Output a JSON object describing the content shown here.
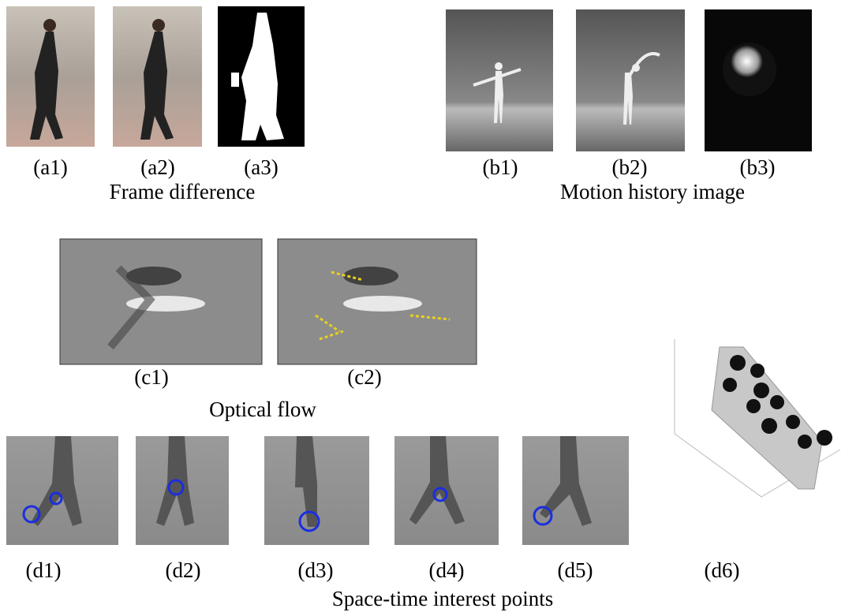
{
  "groups": [
    {
      "caption": "Frame difference",
      "panels": [
        "(a1)",
        "(a2)",
        "(a3)"
      ]
    },
    {
      "caption": "Motion history image",
      "panels": [
        "(b1)",
        "(b2)",
        "(b3)"
      ]
    },
    {
      "caption": "Optical flow",
      "panels": [
        "(c1)",
        "(c2)"
      ]
    },
    {
      "caption": "Space-time interest points",
      "panels": [
        "(d1)",
        "(d2)",
        "(d3)",
        "(d4)",
        "(d5)",
        "(d6)"
      ]
    }
  ]
}
